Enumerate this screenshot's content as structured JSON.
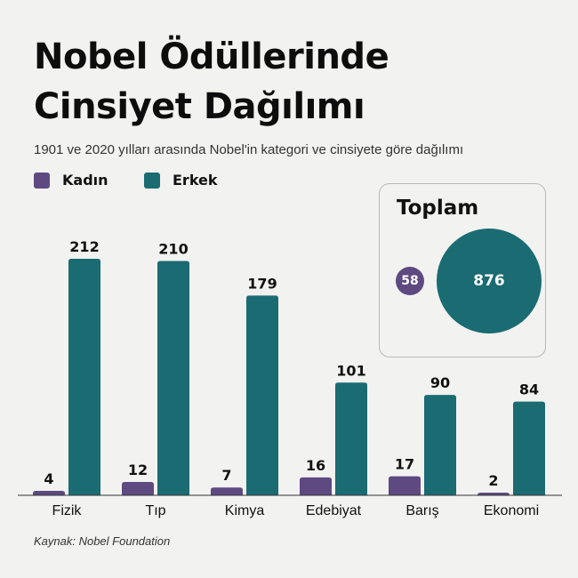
{
  "title_lines": [
    "Nobel Ödüllerinde",
    "Cinsiyet Dağılımı"
  ],
  "subtitle": "1901 ve 2020 yılları arasında Nobel'in kategori ve cinsiyete göre dağılımı",
  "legend": [
    {
      "label": "Kadın",
      "color": "#5e4a80"
    },
    {
      "label": "Erkek",
      "color": "#1b6b72"
    }
  ],
  "totals": {
    "title": "Toplam",
    "kadin": "58",
    "erkek": "876"
  },
  "source": "Kaynak: Nobel Foundation",
  "chart_data": {
    "type": "bar",
    "categories": [
      "Fizik",
      "Tıp",
      "Kimya",
      "Edebiyat",
      "Barış",
      "Ekonomi"
    ],
    "series": [
      {
        "name": "Kadın",
        "values": [
          4,
          12,
          7,
          16,
          17,
          2
        ],
        "color": "#5e4a80"
      },
      {
        "name": "Erkek",
        "values": [
          212,
          210,
          179,
          101,
          90,
          84
        ],
        "color": "#1b6b72"
      }
    ],
    "ylim": [
      0,
      212
    ],
    "grid": false,
    "legend_position": "top-left"
  }
}
